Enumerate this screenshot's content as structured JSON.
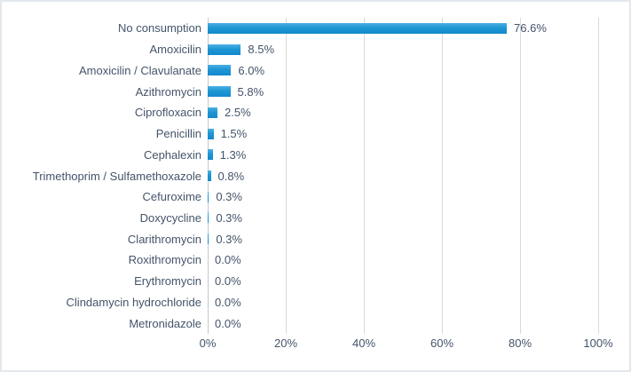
{
  "chart_data": {
    "type": "bar",
    "orientation": "horizontal",
    "title": "",
    "xlabel": "",
    "ylabel": "",
    "categories": [
      "No consumption",
      "Amoxicilin",
      "Amoxicilin / Clavulanate",
      "Azithromycin",
      "Ciprofloxacin",
      "Penicillin",
      "Cephalexin",
      "Trimethoprim / Sulfamethoxazole",
      "Cefuroxime",
      "Doxycycline",
      "Clarithromycin",
      "Roxithromycin",
      "Erythromycin",
      "Clindamycin hydrochloride",
      "Metronidazole"
    ],
    "values": [
      76.6,
      8.5,
      6.0,
      5.8,
      2.5,
      1.5,
      1.3,
      0.8,
      0.3,
      0.3,
      0.3,
      0.0,
      0.0,
      0.0,
      0.0
    ],
    "value_labels": [
      "76.6%",
      "8.5%",
      "6.0%",
      "5.8%",
      "2.5%",
      "1.5%",
      "1.3%",
      "0.8%",
      "0.3%",
      "0.3%",
      "0.3%",
      "0.0%",
      "0.0%",
      "0.0%",
      "0.0%"
    ],
    "x_ticks": [
      "0%",
      "20%",
      "40%",
      "60%",
      "80%",
      "100%"
    ],
    "x_tick_values": [
      0,
      20,
      40,
      60,
      80,
      100
    ],
    "xlim": [
      0,
      100
    ],
    "grid": "vertical",
    "legend": "none",
    "colors": {
      "bar": "#1e96d4",
      "bar_highlight": "#4cb0e2",
      "text": "#44546a",
      "gridline": "#d9d9d9",
      "axis_line": "#c3c9cf",
      "border": "#e3e8ee",
      "background": "#ffffff"
    }
  }
}
